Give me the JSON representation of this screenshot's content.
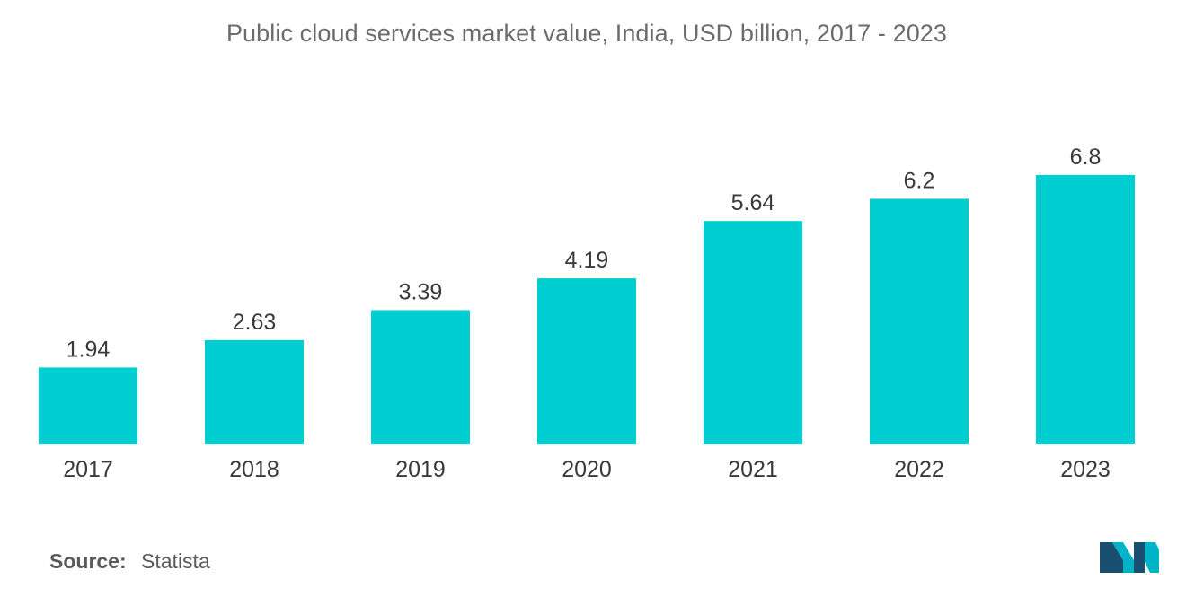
{
  "chart_data": {
    "type": "bar",
    "title": "Public cloud services market value, India, USD billion, 2017 - 2023",
    "categories": [
      "2017",
      "2018",
      "2019",
      "2020",
      "2021",
      "2022",
      "2023"
    ],
    "values": [
      1.94,
      2.63,
      3.39,
      4.19,
      5.64,
      6.2,
      6.8
    ],
    "value_labels": [
      "1.94",
      "2.63",
      "3.39",
      "4.19",
      "5.64",
      "6.2",
      "6.8"
    ],
    "xlabel": "",
    "ylabel": "",
    "ylim": [
      0,
      7.2
    ],
    "grid": false,
    "bar_color": "#00ced1"
  },
  "source": {
    "label": "Source:",
    "value": "Statista"
  },
  "logo": {
    "icon": "mordor-intelligence-logo-icon",
    "colors": [
      "#1b4f72",
      "#00b4c8"
    ]
  }
}
